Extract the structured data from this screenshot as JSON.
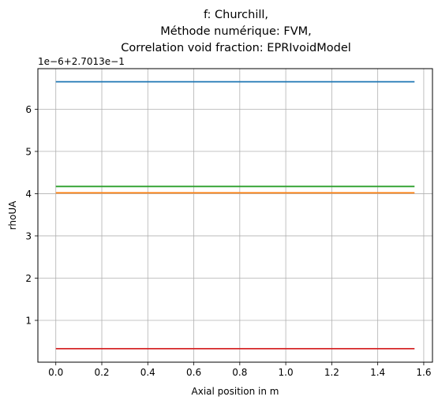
{
  "chart_data": {
    "type": "line",
    "title": [
      "f: Churchill,",
      "Méthode numérique: FVM,",
      "Correlation void fraction: EPRIvoidModel"
    ],
    "xlabel": "Axial position in m",
    "ylabel": "rhoUA",
    "offset_label": "1e−6+2.7013e−1",
    "xlim": [
      -0.078,
      1.638
    ],
    "ylim": [
      0.01,
      6.96
    ],
    "x_ticks": [
      0.0,
      0.2,
      0.4,
      0.6,
      0.8,
      1.0,
      1.2,
      1.4,
      1.6
    ],
    "x_tick_labels": [
      "0.0",
      "0.2",
      "0.4",
      "0.6",
      "0.8",
      "1.0",
      "1.2",
      "1.4",
      "1.6"
    ],
    "y_ticks": [
      1,
      2,
      3,
      4,
      5,
      6
    ],
    "y_tick_labels": [
      "1",
      "2",
      "3",
      "4",
      "5",
      "6"
    ],
    "grid": true,
    "x_range": [
      0.0,
      1.56
    ],
    "series": [
      {
        "color": "#1f77b4",
        "x": [
          0.0,
          1.56
        ],
        "values": [
          6.65,
          6.65
        ]
      },
      {
        "color": "#ff7f0e",
        "x": [
          0.0,
          1.56
        ],
        "values": [
          4.02,
          4.02
        ]
      },
      {
        "color": "#2ca02c",
        "x": [
          0.0,
          1.56
        ],
        "values": [
          4.17,
          4.17
        ]
      },
      {
        "color": "#d62728",
        "x": [
          0.0,
          1.56
        ],
        "values": [
          0.33,
          0.33
        ]
      }
    ]
  }
}
